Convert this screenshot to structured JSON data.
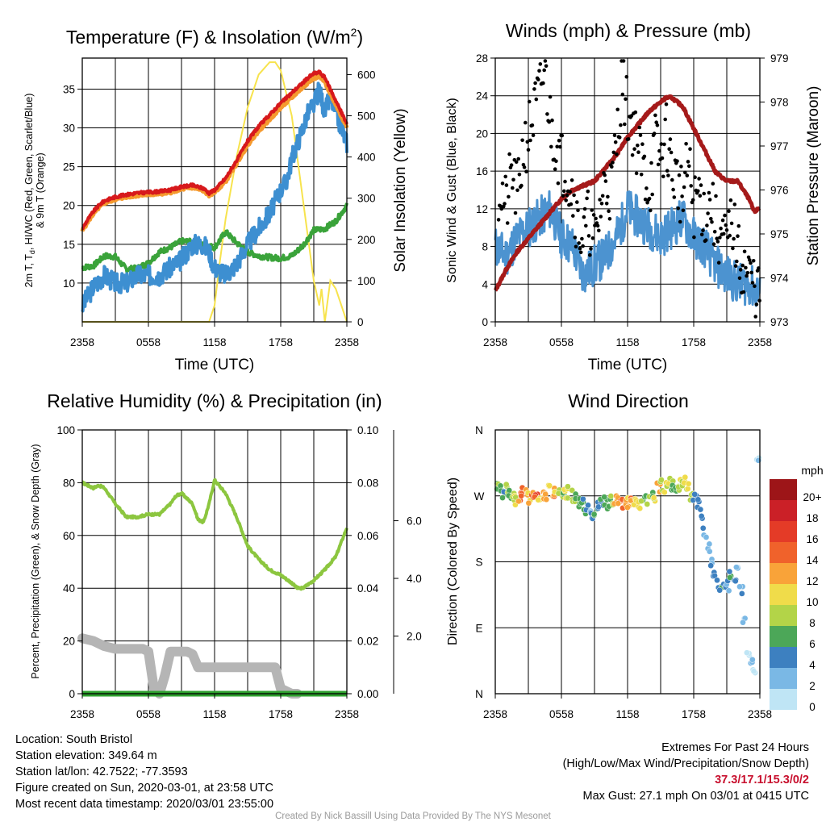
{
  "panels": {
    "temperature": {
      "title": "Temperature (F) & Insolation (W/m",
      "title_sup": "2",
      "title_end": ")",
      "ylabel_line1": "2m T, T",
      "ylabel_sub": "d",
      "ylabel_line1_end": ", HI/WC (Red, Green, Scarlet/Blue)",
      "ylabel_line2": "& 9m T (Orange)",
      "y2label": "Solar Insolation (Yellow)",
      "xlabel": "Time (UTC)"
    },
    "winds": {
      "title": "Winds (mph) & Pressure (mb)",
      "ylabel": "Sonic Wind & Gust (Blue, Black)",
      "y2label": "Station Pressure (Maroon)",
      "xlabel": "Time (UTC)"
    },
    "humidity": {
      "title": "Relative Humidity (%) & Precipitation (in)",
      "ylabel": "Percent, Precipitation (Green), & Snow Depth (Gray)"
    },
    "direction": {
      "title": "Wind Direction",
      "ylabel": "Direction (Colored By Speed)",
      "colorbar_title": "mph"
    }
  },
  "colors": {
    "temp_2m": "#d7191c",
    "temp_9m": "#f59a2e",
    "dewpoint": "#3aa33a",
    "windchill": "#3d8fd1",
    "insolation": "#f7e34d",
    "wind": "#4c93d0",
    "gust": "#000000",
    "pressure": "#a51a1a",
    "rh": "#8cc63f",
    "snow": "#b5b5b5",
    "precip": "#2ea02e"
  },
  "chart_data": [
    {
      "type": "line",
      "panel": "temperature",
      "x_ticks": [
        "2358",
        "0558",
        "1158",
        "1758",
        "2358"
      ],
      "xlim_hours": [
        0,
        24
      ],
      "ylim": [
        5,
        39
      ],
      "y_ticks": [
        "10",
        "15",
        "20",
        "25",
        "30",
        "35"
      ],
      "y2lim": [
        0,
        640
      ],
      "y2_ticks": [
        "0",
        "100",
        "200",
        "300",
        "400",
        "500",
        "600"
      ],
      "series": [
        {
          "role": "temp_2m",
          "axis": "left",
          "x": [
            0,
            0.5,
            1,
            1.5,
            2,
            3,
            4,
            5,
            6,
            7,
            8,
            9,
            10,
            11,
            11.5,
            12,
            13,
            14,
            15,
            16,
            17,
            18,
            19,
            19.5,
            20,
            20.5,
            21,
            21.5,
            22,
            22.5,
            23,
            23.5,
            24
          ],
          "values": [
            17,
            18.2,
            19.2,
            20,
            20.6,
            21.1,
            21.4,
            21.6,
            21.7,
            21.8,
            22,
            22.4,
            22.6,
            22.2,
            21.6,
            22,
            23.5,
            25.8,
            28.3,
            30.2,
            31.7,
            33.2,
            34.5,
            35.2,
            35.8,
            36.5,
            37,
            37.2,
            36.5,
            35,
            33.5,
            32,
            30.5
          ]
        },
        {
          "role": "temp_9m",
          "axis": "left",
          "x": [
            0,
            0.5,
            1,
            1.5,
            2,
            3,
            4,
            5,
            6,
            7,
            8,
            9,
            10,
            11,
            11.5,
            12,
            13,
            14,
            15,
            16,
            17,
            18,
            19,
            19.5,
            20,
            20.5,
            21,
            21.5,
            22,
            22.5,
            23,
            23.5,
            24
          ],
          "values": [
            16.7,
            17.9,
            18.9,
            19.7,
            20.3,
            20.8,
            21.1,
            21.3,
            21.4,
            21.5,
            21.7,
            22.1,
            22.3,
            21.9,
            21.3,
            21.7,
            23.1,
            25.4,
            27.8,
            29.6,
            31.1,
            32.6,
            33.9,
            34.6,
            35.2,
            35.9,
            36.4,
            36.6,
            35.9,
            34.4,
            33,
            31.5,
            30
          ]
        },
        {
          "role": "windchill",
          "axis": "left",
          "x": [
            0,
            1,
            2,
            3,
            4,
            5,
            6,
            7,
            8,
            9,
            10,
            11,
            11.5,
            12,
            13,
            14,
            15,
            16,
            17,
            18,
            18.5,
            19,
            20,
            20.5,
            21,
            21.5,
            22,
            22.5,
            23,
            23.5,
            24
          ],
          "values": [
            7,
            9.5,
            11,
            10,
            10,
            11,
            11,
            11,
            12,
            13,
            15,
            15,
            14,
            12,
            11,
            12.5,
            15,
            17,
            19,
            22,
            23,
            26,
            30,
            32,
            33,
            35,
            32,
            34,
            32,
            30,
            28
          ]
        },
        {
          "role": "dewpoint",
          "axis": "left",
          "x": [
            0,
            1,
            2,
            3,
            4,
            5,
            6,
            7,
            8,
            9,
            10,
            11,
            12,
            13,
            14,
            15,
            16,
            17,
            18,
            19,
            20,
            21,
            22,
            23,
            24
          ],
          "values": [
            12,
            12.2,
            13.5,
            13.4,
            11.8,
            11.9,
            12.6,
            14,
            14.6,
            15.4,
            15.3,
            14.9,
            14.6,
            16.6,
            15.2,
            14,
            13.5,
            13.3,
            13.2,
            13.5,
            14.8,
            16.8,
            17,
            18,
            20
          ]
        },
        {
          "role": "insolation",
          "axis": "right",
          "x": [
            0,
            11.5,
            12,
            12.5,
            13,
            14,
            15,
            16,
            17,
            17.5,
            18,
            19,
            20,
            21,
            21.5,
            21.7,
            22,
            22.2,
            22.5,
            23,
            23.5,
            24
          ],
          "values": [
            0,
            0,
            40,
            150,
            250,
            400,
            520,
            600,
            630,
            630,
            610,
            500,
            300,
            100,
            40,
            80,
            0,
            40,
            100,
            80,
            40,
            0
          ]
        }
      ]
    },
    {
      "type": "line",
      "panel": "winds",
      "x_ticks": [
        "2358",
        "0558",
        "1158",
        "1758",
        "2358"
      ],
      "xlim_hours": [
        0,
        24
      ],
      "ylim": [
        0,
        28
      ],
      "y_ticks": [
        "0",
        "4",
        "8",
        "12",
        "16",
        "20",
        "24",
        "28"
      ],
      "y2lim": [
        973,
        979
      ],
      "y2_ticks": [
        "973",
        "974",
        "975",
        "976",
        "977",
        "978",
        "979"
      ],
      "series": [
        {
          "role": "wind",
          "axis": "left",
          "x": [
            0,
            1,
            2,
            3,
            4,
            5,
            6,
            7,
            8,
            9,
            10,
            11,
            12,
            13,
            14,
            15,
            16,
            17,
            18,
            19,
            20,
            21,
            22,
            23,
            24
          ],
          "values": [
            8,
            7,
            9,
            10,
            11,
            12,
            9,
            8,
            5,
            6,
            7,
            9,
            12,
            11,
            10,
            9,
            10,
            11,
            9,
            8,
            6,
            5,
            4,
            4,
            3
          ]
        },
        {
          "role": "pressure",
          "axis": "right",
          "x": [
            0,
            1,
            2,
            3,
            4,
            5,
            6,
            7,
            8,
            9,
            10,
            11,
            12,
            13,
            14,
            15,
            15.5,
            16,
            17,
            18,
            19,
            20,
            21,
            22,
            23,
            23.5,
            24
          ],
          "values": [
            973.7,
            974.2,
            974.6,
            974.9,
            975.2,
            975.5,
            975.8,
            976,
            976.1,
            976.2,
            976.5,
            976.8,
            977.2,
            977.5,
            977.8,
            978,
            978.1,
            978.1,
            977.9,
            977.4,
            976.9,
            976.4,
            976.2,
            976.2,
            975.8,
            975.5,
            975.6
          ]
        },
        {
          "role": "gust",
          "axis": "left",
          "kind": "scatter",
          "x": [
            0.5,
            1,
            1.5,
            2,
            2.5,
            3,
            3.5,
            4,
            4.5,
            5,
            5.5,
            6,
            6.5,
            7,
            7.5,
            8,
            8.5,
            9,
            9.5,
            10,
            10.5,
            11,
            11.5,
            12,
            12.5,
            13,
            13.5,
            14,
            14.5,
            15,
            15.5,
            16,
            16.5,
            17,
            17.5,
            18,
            18.5,
            19,
            19.5,
            20,
            20.5,
            21,
            21.5,
            22,
            22.5,
            23,
            23.5,
            24
          ],
          "values": [
            14,
            12,
            16,
            13,
            18,
            20,
            22,
            24,
            27,
            21,
            19,
            17,
            16,
            14,
            10,
            9,
            11,
            8,
            12,
            15,
            14,
            19,
            26,
            22,
            21,
            18,
            16,
            14,
            19,
            17,
            20,
            16,
            15,
            13,
            17,
            12,
            14,
            11,
            13,
            10,
            9,
            8,
            11,
            7,
            6,
            5,
            4,
            3
          ]
        }
      ]
    },
    {
      "type": "line",
      "panel": "humidity",
      "x_ticks": [
        "2358",
        "0558",
        "1158",
        "1758",
        "2358"
      ],
      "xlim_hours": [
        0,
        24
      ],
      "ylim": [
        0,
        100
      ],
      "y_ticks": [
        "0",
        "20",
        "40",
        "60",
        "80",
        "100"
      ],
      "y2lim": [
        0,
        0.1
      ],
      "y2_ticks": [
        "0.00",
        "0.02",
        "0.04",
        "0.06",
        "0.08",
        "0.10"
      ],
      "y3_ticks": [
        "2.0",
        "4.0",
        "6.0"
      ],
      "series": [
        {
          "role": "rh",
          "axis": "left",
          "x": [
            0,
            0.5,
            1,
            1.5,
            2,
            3,
            4,
            5,
            6,
            7,
            8,
            8.5,
            9,
            10,
            10.5,
            11,
            11.5,
            12,
            13,
            14,
            15,
            16,
            17,
            18,
            19,
            19.5,
            20,
            21,
            22,
            23,
            24
          ],
          "values": [
            80,
            79,
            78,
            79,
            78,
            72,
            67,
            67,
            68,
            68,
            72,
            75,
            76,
            72,
            66,
            65,
            72,
            81,
            76,
            67,
            56,
            51,
            47,
            45,
            42,
            40,
            40,
            43,
            47,
            52,
            63
          ]
        },
        {
          "role": "snow",
          "axis": "left",
          "x": [
            0,
            1,
            2,
            3,
            4,
            5,
            5.5,
            6,
            6.5,
            7,
            7.5,
            8,
            9,
            9.5,
            10,
            10.5,
            11,
            12,
            13,
            14,
            15,
            16,
            17,
            17.5,
            18,
            19,
            19.5
          ],
          "values": [
            21,
            20,
            18,
            17,
            17,
            17,
            17,
            16,
            2,
            0,
            7,
            16,
            16,
            16,
            15,
            10,
            10,
            10,
            10,
            10,
            10,
            10,
            10,
            10,
            2,
            0,
            0
          ]
        },
        {
          "role": "precip",
          "axis": "right",
          "x": [
            0,
            24
          ],
          "values": [
            0,
            0
          ]
        }
      ]
    },
    {
      "type": "scatter",
      "panel": "direction",
      "x_ticks": [
        "2358",
        "0558",
        "1158",
        "1758",
        "2358"
      ],
      "xlim_hours": [
        0,
        24
      ],
      "ylim_degrees": [
        0,
        360
      ],
      "y_ticks": [
        "N",
        "E",
        "S",
        "W",
        "N"
      ],
      "colorbar": {
        "labels": [
          "20+",
          "18",
          "16",
          "14",
          "12",
          "10",
          "8",
          "6",
          "4",
          "2",
          "0"
        ],
        "colors": [
          "#9d1518",
          "#cb2027",
          "#e43b27",
          "#f0622b",
          "#f9a339",
          "#f0dc4a",
          "#b3d448",
          "#4ca758",
          "#3d80c0",
          "#7ab8e5",
          "#bfe5f5"
        ]
      },
      "points": {
        "x": [
          0.2,
          0.5,
          0.8,
          1,
          1.3,
          1.6,
          1.9,
          2.2,
          2.5,
          2.8,
          3.1,
          3.4,
          3.7,
          4,
          4.3,
          4.6,
          4.9,
          5.2,
          5.5,
          5.8,
          6.1,
          6.4,
          6.7,
          7,
          7.3,
          7.6,
          7.9,
          8.2,
          8.5,
          8.8,
          9.1,
          9.4,
          9.7,
          10,
          10.3,
          10.6,
          10.9,
          11.2,
          11.5,
          11.8,
          12.1,
          12.4,
          12.7,
          13,
          13.3,
          13.6,
          13.9,
          14.2,
          14.5,
          14.8,
          15.1,
          15.4,
          15.7,
          16,
          16.3,
          16.6,
          16.9,
          17.2,
          17.5,
          17.8,
          18.1,
          18.4,
          18.7,
          19,
          19.3,
          19.6,
          19.9,
          20.2,
          20.5,
          20.8,
          21.1,
          21.4,
          21.7,
          22,
          22.3,
          22.6,
          22.9,
          23.2,
          23.5,
          23.8
        ],
        "direction": [
          285,
          280,
          275,
          278,
          272,
          268,
          265,
          270,
          275,
          272,
          268,
          270,
          276,
          272,
          274,
          270,
          278,
          275,
          273,
          277,
          276,
          272,
          275,
          270,
          266,
          262,
          258,
          252,
          250,
          247,
          250,
          255,
          260,
          262,
          258,
          262,
          262,
          260,
          258,
          262,
          262,
          260,
          262,
          258,
          266,
          268,
          262,
          270,
          268,
          280,
          285,
          282,
          290,
          285,
          280,
          275,
          285,
          290,
          280,
          270,
          265,
          258,
          245,
          220,
          200,
          180,
          160,
          150,
          145,
          152,
          148,
          160,
          155,
          170,
          140,
          100,
          60,
          40,
          30,
          320
        ],
        "speed": [
          8,
          7,
          6,
          9,
          7,
          8,
          10,
          14,
          15,
          13,
          12,
          14,
          16,
          11,
          12,
          13,
          10,
          14,
          12,
          9,
          8,
          11,
          10,
          9,
          8,
          7,
          6,
          6,
          4,
          5,
          6,
          5,
          6,
          7,
          8,
          9,
          12,
          14,
          15,
          13,
          12,
          14,
          10,
          11,
          8,
          7,
          9,
          8,
          10,
          12,
          9,
          11,
          10,
          8,
          7,
          9,
          10,
          11,
          10,
          9,
          6,
          5,
          5,
          4,
          3,
          4,
          5,
          4,
          6,
          5,
          4,
          6,
          5,
          3,
          4,
          3,
          2,
          3,
          2,
          2
        ]
      }
    }
  ],
  "info": {
    "location": "Location: South Bristol",
    "elevation": "Station elevation: 349.64 m",
    "latlon": "Station lat/lon: 42.7522; -77.3593",
    "created": "Figure created on Sun, 2020-03-01, at 23:58 UTC",
    "recent": "Most recent data timestamp: 2020/03/01 23:55:00",
    "extremes_title": "Extremes For Past 24 Hours",
    "extremes_legend": "(High/Low/Max Wind/Precipitation/Snow Depth)",
    "extremes_values": "37.3/17.1/15.3/0/2",
    "max_gust": "Max Gust: 27.1 mph On 03/01 at 0415 UTC",
    "credit": "Created By Nick Bassill Using Data Provided By The NYS Mesonet"
  }
}
